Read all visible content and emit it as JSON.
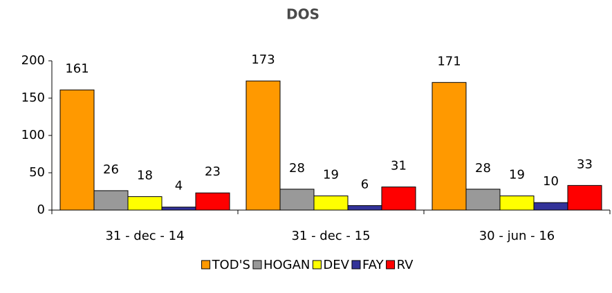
{
  "chart_data": {
    "type": "bar",
    "title": "DOS",
    "categories": [
      "31 - dec - 14",
      "31 - dec - 15",
      "30 - jun - 16"
    ],
    "series": [
      {
        "name": "TOD'S",
        "color": "#ff9900",
        "values": [
          161,
          173,
          171
        ]
      },
      {
        "name": "HOGAN",
        "color": "#999999",
        "values": [
          26,
          28,
          28
        ]
      },
      {
        "name": "DEV",
        "color": "#ffff00",
        "values": [
          18,
          19,
          19
        ]
      },
      {
        "name": "FAY",
        "color": "#333399",
        "values": [
          4,
          6,
          10
        ]
      },
      {
        "name": "RV",
        "color": "#ff0000",
        "values": [
          23,
          31,
          33
        ]
      }
    ],
    "ylim": [
      0,
      200
    ],
    "yticks": [
      0,
      50,
      100,
      150,
      200
    ],
    "grid": false,
    "legend": "bottom"
  }
}
